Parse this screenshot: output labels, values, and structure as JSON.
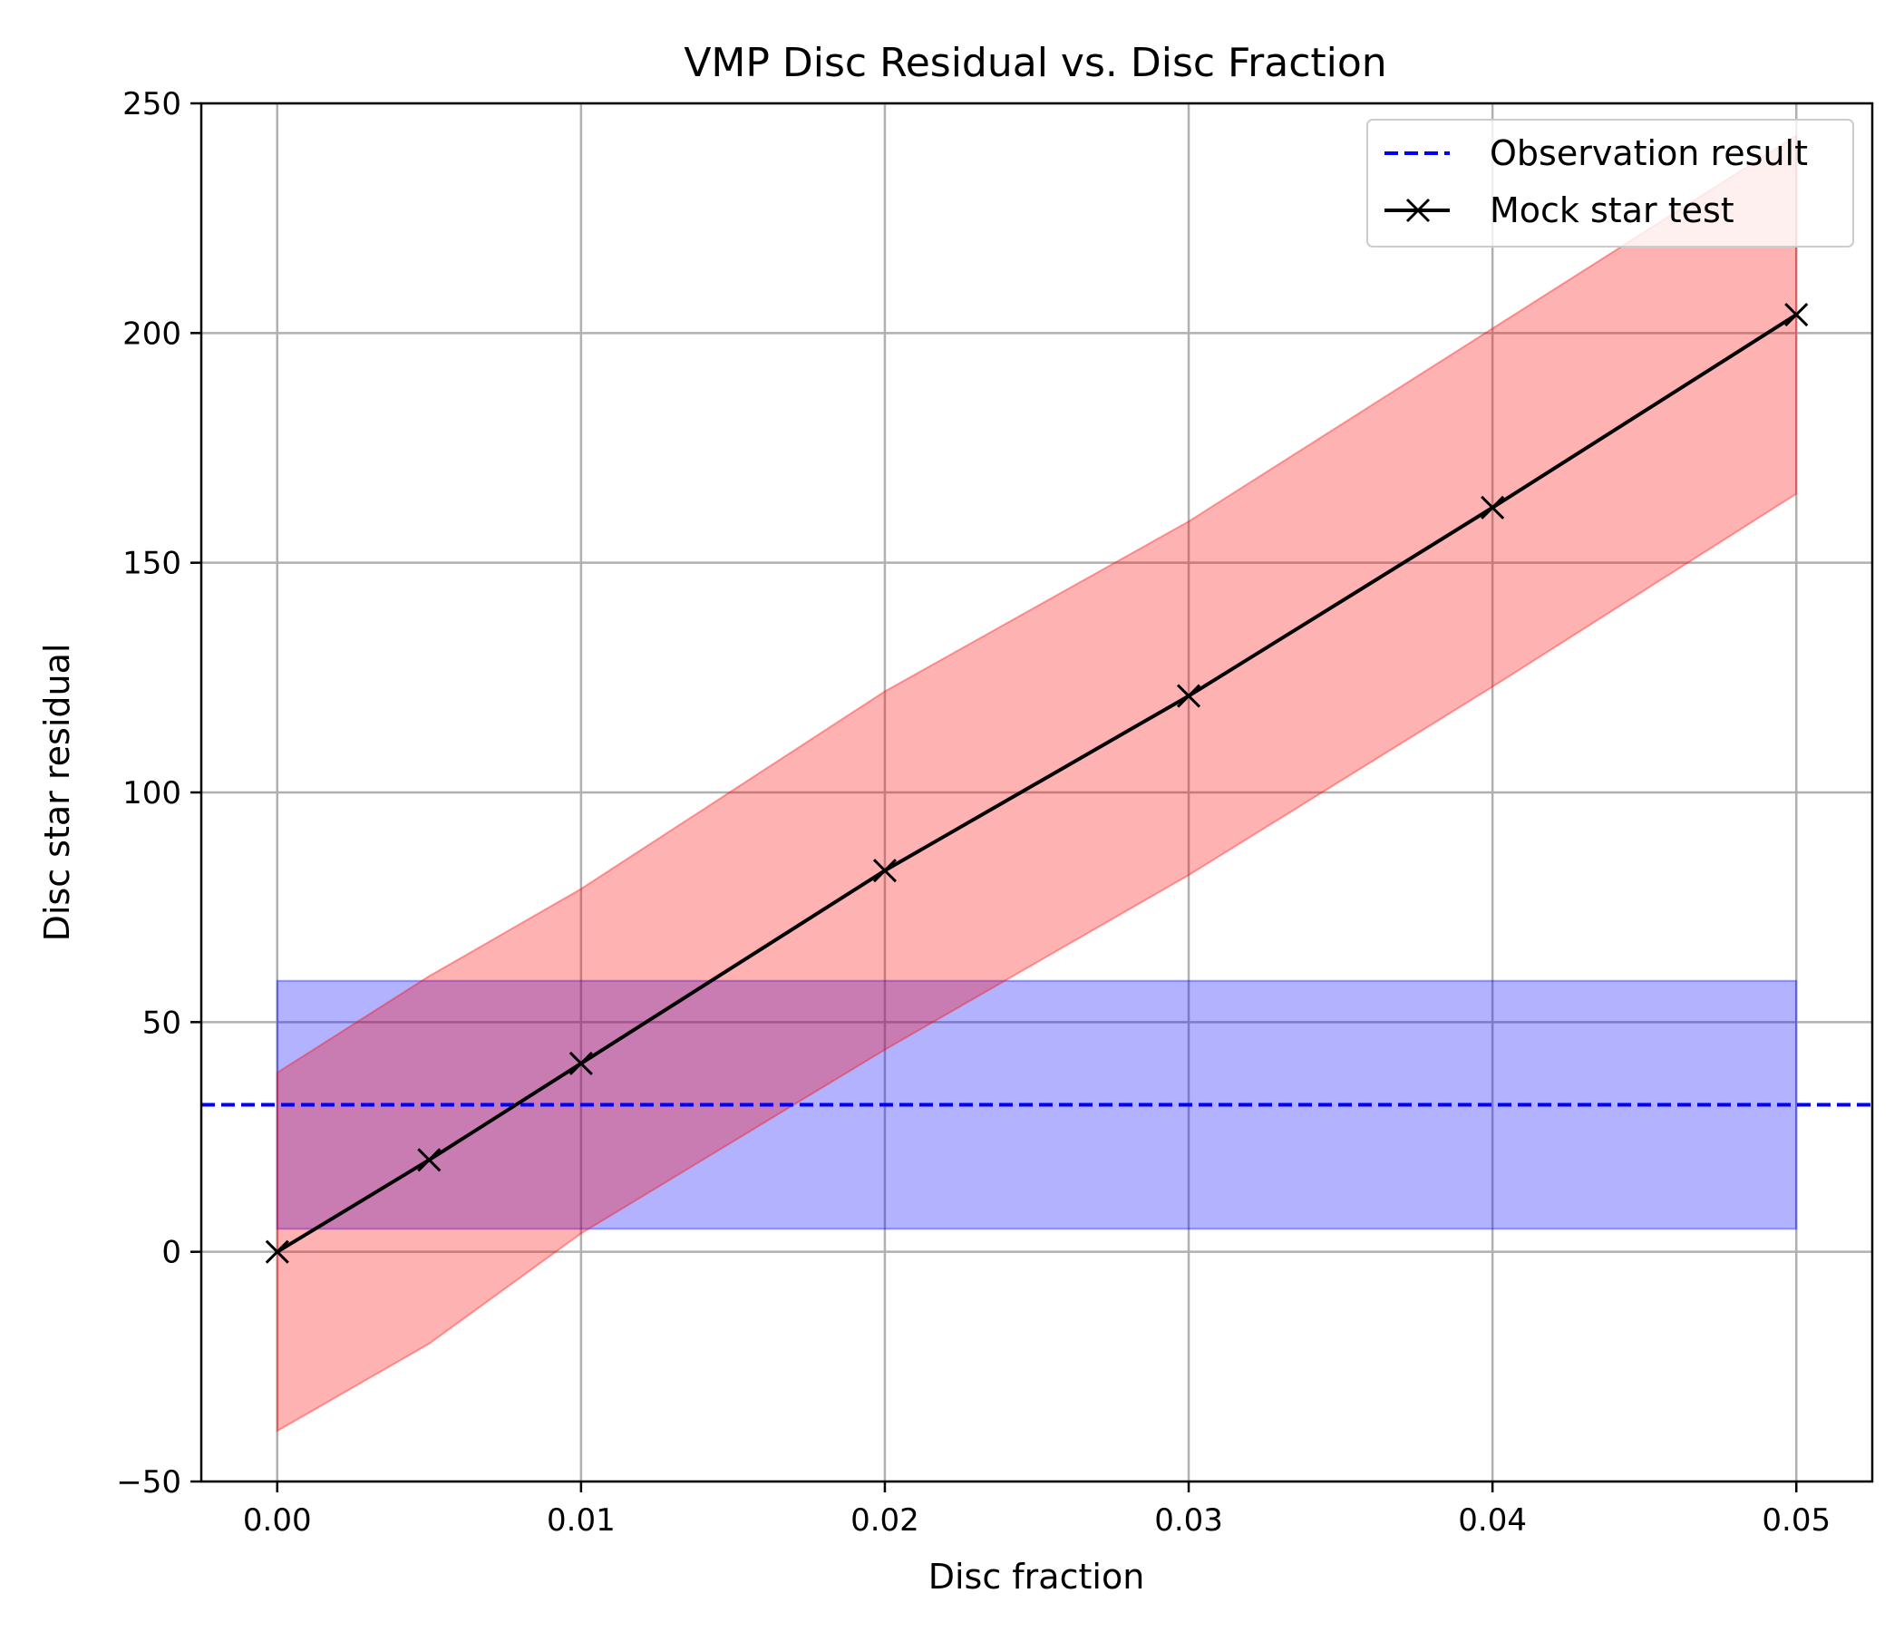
{
  "chart_data": {
    "type": "line",
    "title": "VMP Disc Residual vs. Disc Fraction",
    "xlabel": "Disc fraction",
    "ylabel": "Disc star residual",
    "xlim": [
      -0.0025,
      0.0525
    ],
    "ylim": [
      -50,
      250
    ],
    "x_ticks": [
      0.0,
      0.01,
      0.02,
      0.03,
      0.04,
      0.05
    ],
    "x_tick_labels": [
      "0.00",
      "0.01",
      "0.02",
      "0.03",
      "0.04",
      "0.05"
    ],
    "y_ticks": [
      -50,
      0,
      50,
      100,
      150,
      200,
      250
    ],
    "y_tick_labels": [
      "−50",
      "0",
      "50",
      "100",
      "150",
      "200",
      "250"
    ],
    "grid": true,
    "legend_position": "top-right",
    "series": [
      {
        "name": "Mock star test",
        "style": "solid line with x markers",
        "color": "#000000",
        "x": [
          0.0,
          0.005,
          0.01,
          0.02,
          0.03,
          0.04,
          0.05
        ],
        "y": [
          0,
          20,
          41,
          83,
          121,
          162,
          204
        ],
        "band": {
          "color": "#ff0000",
          "lower": [
            -39,
            -20,
            4,
            44,
            82,
            123,
            165
          ],
          "upper": [
            39,
            60,
            79,
            122,
            159,
            201,
            243
          ]
        }
      },
      {
        "name": "Observation result",
        "style": "dashed horizontal line",
        "color": "#0000ff",
        "y": 32,
        "band": {
          "color": "#0000ff",
          "x_range": [
            0.0,
            0.05
          ],
          "lower": 5,
          "upper": 59
        }
      }
    ]
  }
}
